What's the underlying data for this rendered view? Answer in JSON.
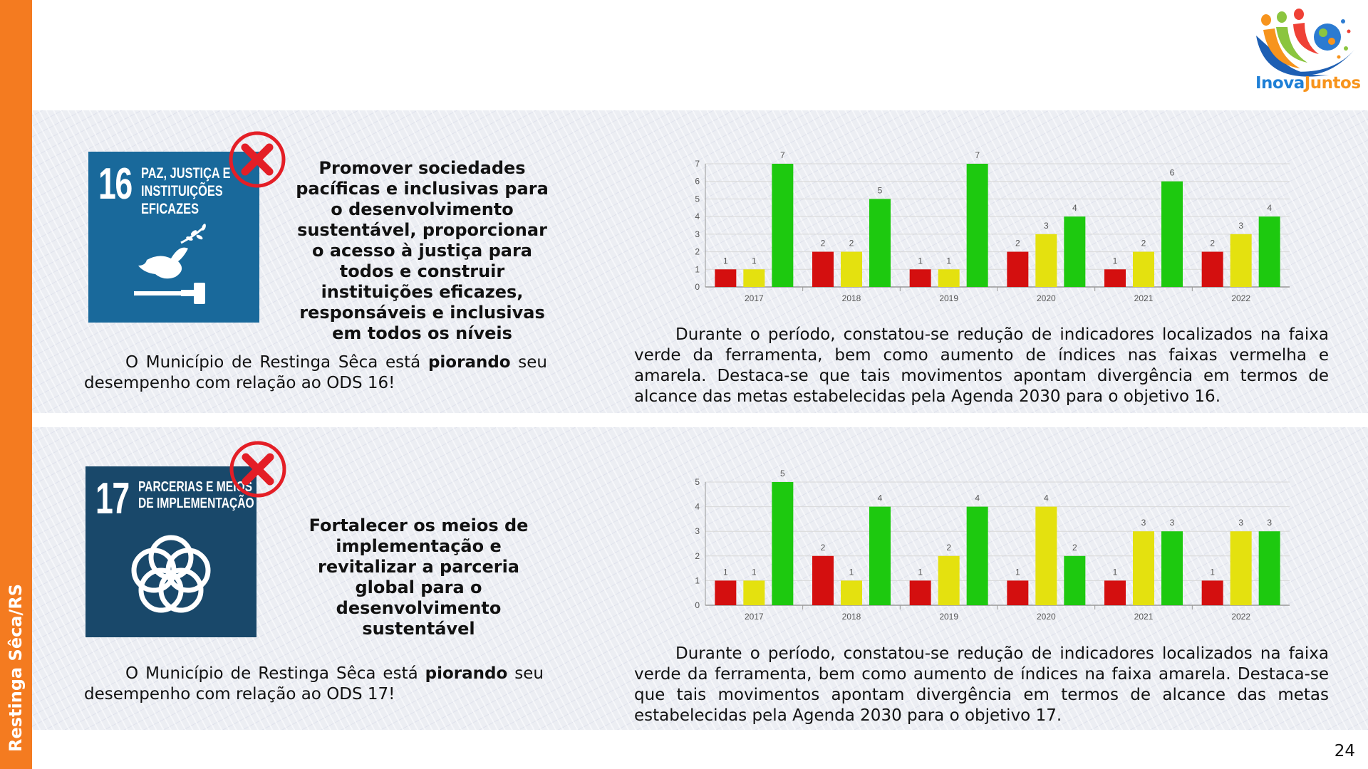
{
  "sidebar": {
    "label": "Restinga Sêca/RS"
  },
  "logo": {
    "text_part1": "Inova",
    "text_part2": "Juntos"
  },
  "page_number": "24",
  "sections": [
    {
      "sdg_number": "16",
      "sdg_title": "PAZ, JUSTIÇA E\nINSTITUIÇÕES\nEFICAZES",
      "goal_text": "Promover sociedades pacíficas e inclusivas para o desenvolvimento sustentável, proporcionar o acesso à justiça para todos e construir instituições eficazes, responsáveis e inclusivas em todos os níveis",
      "status_before": "O Município de Restinga Sêca está ",
      "status_bold": "piorando",
      "status_after": " seu desempenho com relação ao ODS 16!",
      "description": "Durante o período, constatou-se redução de indicadores localizados na faixa verde da ferramenta, bem como aumento de índices nas faixas vermelha e amarela. Destaca-se que tais movimentos apontam divergência em termos de alcance das metas estabelecidas pela Agenda 2030 para o objetivo 16."
    },
    {
      "sdg_number": "17",
      "sdg_title": "PARCERIAS E MEIOS\nDE IMPLEMENTAÇÃO",
      "goal_text": "Fortalecer os meios de implementação e revitalizar a parceria global para o desenvolvimento sustentável",
      "status_before": "O Município de Restinga Sêca está ",
      "status_bold": "piorando",
      "status_after": " seu desempenho com relação ao ODS 17!",
      "description": "Durante o período, constatou-se redução de indicadores localizados na faixa verde da ferramenta, bem como aumento de índices na faixa amarela. Destaca-se que tais movimentos apontam divergência em termos de alcance das metas estabelecidas pela Agenda 2030 para o objetivo 17."
    }
  ],
  "colors": {
    "red": "#d40f0f",
    "yellow": "#e4e10f",
    "green": "#1dc90f",
    "orange": "#f47b20"
  },
  "chart_data": [
    {
      "type": "bar",
      "categories": [
        "2017",
        "2018",
        "2019",
        "2020",
        "2021",
        "2022"
      ],
      "series": [
        {
          "values": [
            1,
            2,
            1,
            2,
            1,
            2
          ]
        },
        {
          "values": [
            1,
            2,
            1,
            3,
            2,
            3
          ]
        },
        {
          "values": [
            7,
            5,
            7,
            4,
            6,
            4
          ]
        }
      ],
      "ylim": [
        0,
        7
      ],
      "yticks": [
        "0",
        "1",
        "2",
        "3",
        "4",
        "5",
        "6",
        "7"
      ],
      "grid": true,
      "legend": "none"
    },
    {
      "type": "bar",
      "categories": [
        "2017",
        "2018",
        "2019",
        "2020",
        "2021",
        "2022"
      ],
      "series": [
        {
          "values": [
            1,
            2,
            1,
            1,
            1,
            1
          ]
        },
        {
          "values": [
            1,
            1,
            2,
            4,
            3,
            3
          ]
        },
        {
          "values": [
            5,
            4,
            4,
            2,
            3,
            3
          ]
        }
      ],
      "ylim": [
        0,
        5
      ],
      "yticks": [
        "0",
        "1",
        "2",
        "3",
        "4",
        "5"
      ],
      "grid": true,
      "legend": "none"
    }
  ]
}
